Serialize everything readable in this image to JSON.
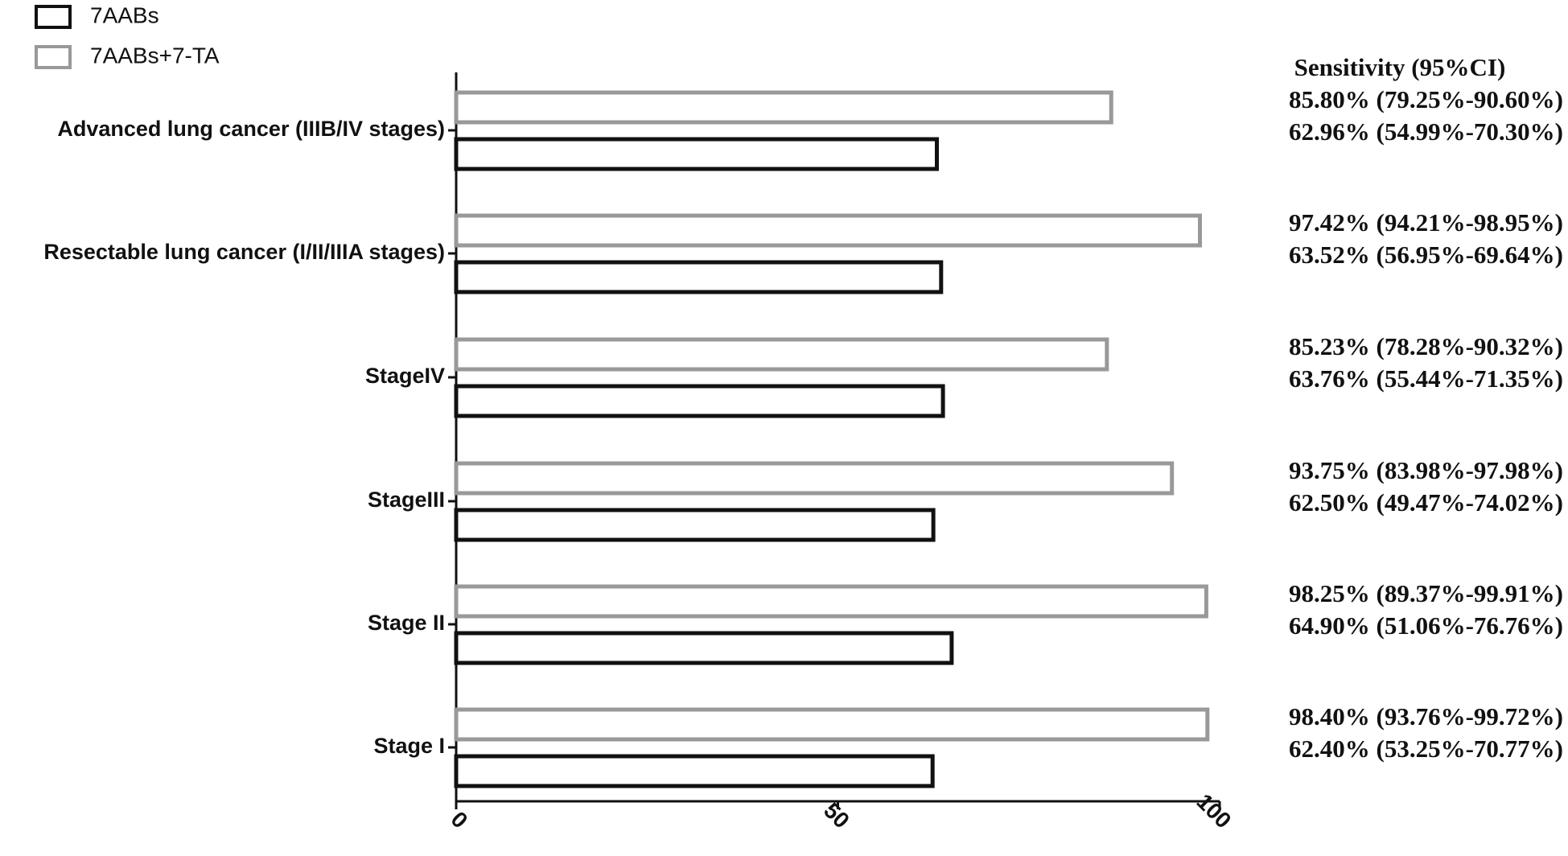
{
  "chart_data": {
    "type": "bar",
    "orientation": "horizontal",
    "annotation": "Sensitivity (95%CI)",
    "categories": [
      "Advanced lung cancer (IIIB/IV stages)",
      "Resectable lung cancer (I/II/IIIA stages)",
      "StageIV",
      "StageIII",
      "Stage II",
      "Stage I"
    ],
    "series": [
      {
        "name": "7AABs",
        "color": "#111111",
        "values": [
          62.96,
          63.52,
          63.76,
          62.5,
          64.9,
          62.4
        ],
        "value_labels": [
          "62.96% (54.99%-70.30%)",
          "63.52% (56.95%-69.64%)",
          "63.76% (55.44%-71.35%)",
          "62.50% (49.47%-74.02%)",
          "64.90% (51.06%-76.76%)",
          "62.40% (53.25%-70.77%)"
        ]
      },
      {
        "name": "7AABs+7-TA",
        "color": "#999999",
        "values": [
          85.8,
          97.42,
          85.23,
          93.75,
          98.25,
          98.4
        ],
        "value_labels": [
          "85.80% (79.25%-90.60%)",
          "97.42% (94.21%-98.95%)",
          "85.23% (78.28%-90.32%)",
          "93.75% (83.98%-97.98%)",
          "98.25% (89.37%-99.91%)",
          "98.40% (93.76%-99.72%)"
        ]
      }
    ],
    "xlim": [
      0,
      100
    ],
    "xticks": [
      0,
      50,
      100
    ],
    "legend": "top-left"
  }
}
